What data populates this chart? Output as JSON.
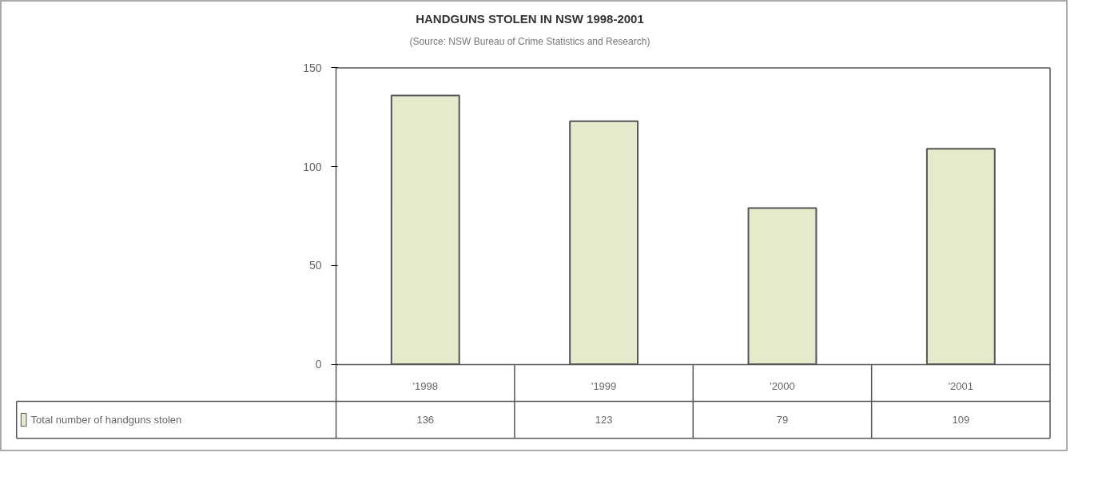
{
  "chart_data": {
    "type": "bar",
    "title": "HANDGUNS STOLEN IN NSW 1998-2001",
    "subtitle": "(Source: NSW Bureau of Crime Statistics and Research)",
    "categories": [
      "'1998",
      "'1999",
      "'2000",
      "'2001"
    ],
    "series": [
      {
        "name": "Total number of handguns stolen",
        "color": "#e6e9cc",
        "values": [
          136,
          123,
          79,
          109
        ]
      }
    ],
    "ylim": [
      0,
      150
    ],
    "yticks": [
      0,
      50,
      100,
      150
    ],
    "grid": false,
    "legend": "bottom",
    "data_labels": true
  }
}
